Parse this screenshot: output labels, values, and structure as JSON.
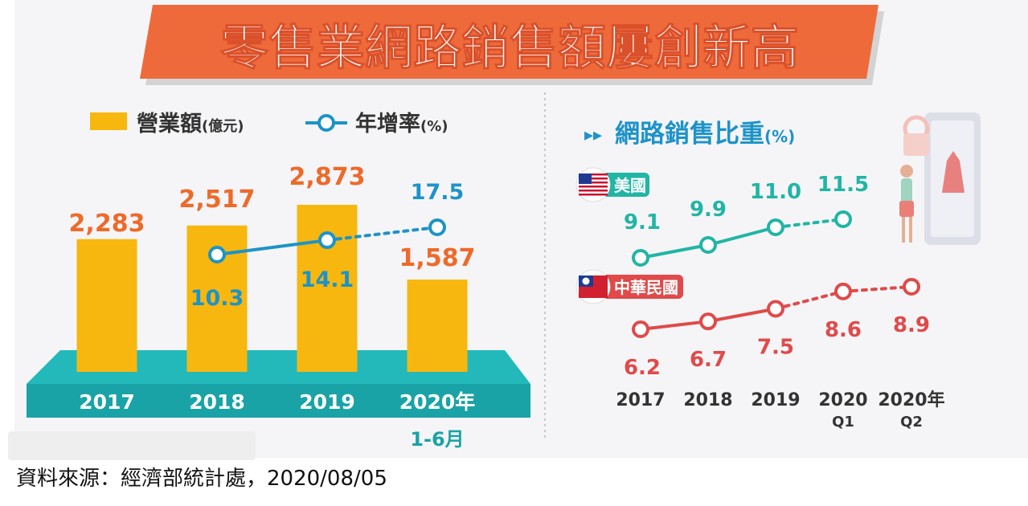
{
  "title": "零售業網路銷售額屢創新高",
  "colors": {
    "banner": "#ef6a3b",
    "banner_shadow": "#c8c8c8",
    "bar": "#f7b70e",
    "bar_label": "#ee6a2a",
    "growth": "#1d93c8",
    "usa": "#21b5a5",
    "taiwan": "#e04a4a",
    "platform": "#1aa3a6",
    "platform_top": "#23b9ba",
    "platform_front": "#118a8d",
    "panel_bg": "#f4f4f6",
    "axis_text": "#333333"
  },
  "legend": {
    "revenue": "營業額",
    "revenue_unit": "(億元)",
    "growth": "年增率",
    "growth_unit": "(%)"
  },
  "right_panel": {
    "arrows": "▸▸",
    "title": "網路銷售比重",
    "unit": "(%)"
  },
  "source": "資料來源：經濟部統計處，2020/08/05",
  "chart_data": [
    {
      "type": "bar",
      "title": "營業額(億元) / 年增率(%)",
      "categories": [
        "2017",
        "2018",
        "2019",
        "2020年"
      ],
      "category_sub": [
        "",
        "",
        "",
        "1-6月"
      ],
      "series": [
        {
          "name": "營業額",
          "unit": "億元",
          "values": [
            2283,
            2517,
            2873,
            1587
          ],
          "labels": [
            "2,283",
            "2,517",
            "2,873",
            "1,587"
          ]
        },
        {
          "name": "年增率",
          "unit": "%",
          "type": "line",
          "values": [
            null,
            10.3,
            14.1,
            17.5
          ],
          "labels": [
            "",
            "10.3",
            "14.1",
            "17.5"
          ],
          "dashed_from_index": 2
        }
      ],
      "ylim": [
        0,
        3200
      ]
    },
    {
      "type": "line",
      "title": "網路銷售比重(%)",
      "categories": [
        "2017",
        "2018",
        "2019",
        "2020",
        "2020年"
      ],
      "category_sub": [
        "",
        "",
        "",
        "Q1",
        "Q2"
      ],
      "series": [
        {
          "name": "美國",
          "values": [
            9.1,
            9.9,
            11.0,
            11.5,
            null
          ],
          "labels": [
            "9.1",
            "9.9",
            "11.0",
            "11.5",
            ""
          ],
          "dashed_from_index": 2
        },
        {
          "name": "中華民國",
          "values": [
            6.2,
            6.7,
            7.5,
            8.6,
            8.9
          ],
          "labels": [
            "6.2",
            "6.7",
            "7.5",
            "8.6",
            "8.9"
          ],
          "dashed_from_index": 2
        }
      ]
    }
  ]
}
